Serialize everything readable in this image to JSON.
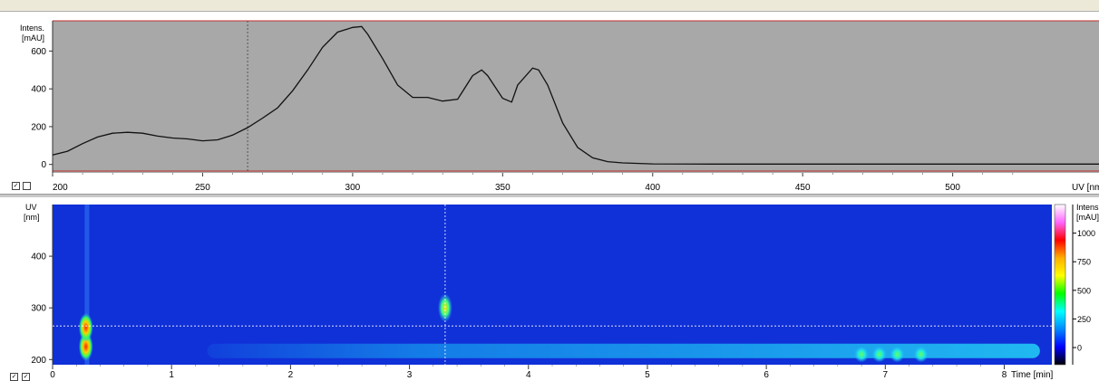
{
  "chart_data": [
    {
      "type": "line",
      "title": "",
      "ylabel": "Intens.",
      "yunit": "[mAU]",
      "xlabel": "UV [nm]",
      "xlim": [
        200,
        540
      ],
      "ylim": [
        -35,
        760
      ],
      "x_ticks": [
        "200",
        "250",
        "300",
        "350",
        "400",
        "450",
        "500"
      ],
      "y_ticks": [
        "0",
        "200",
        "400",
        "600"
      ],
      "cursor_x": 265,
      "background": "#a8a8a8",
      "line_color": "#111111",
      "baseline_color": "#c03030",
      "series": [
        {
          "x": [
            200,
            205,
            210,
            215,
            220,
            225,
            230,
            235,
            240,
            245,
            250,
            255,
            260,
            265,
            270,
            275,
            280,
            285,
            290,
            295,
            300,
            303,
            305,
            310,
            315,
            320,
            325,
            330,
            335,
            340,
            343,
            345,
            350,
            353,
            355,
            360,
            362,
            365,
            370,
            375,
            380,
            385,
            390,
            400,
            420,
            450,
            500,
            540
          ],
          "values": [
            50,
            70,
            110,
            145,
            165,
            170,
            165,
            150,
            140,
            135,
            125,
            130,
            155,
            195,
            245,
            300,
            390,
            500,
            620,
            700,
            725,
            730,
            690,
            560,
            420,
            355,
            355,
            335,
            345,
            470,
            500,
            470,
            350,
            330,
            420,
            510,
            500,
            420,
            220,
            90,
            35,
            15,
            8,
            3,
            2,
            2,
            2,
            2
          ]
        }
      ]
    },
    {
      "type": "heatmap",
      "title": "",
      "xlabel": "Time [min]",
      "ylabel": "UV",
      "yunit": "[nm]",
      "xlim": [
        0,
        8.4
      ],
      "ylim": [
        190,
        500
      ],
      "x_ticks": [
        "0",
        "1",
        "2",
        "3",
        "4",
        "5",
        "6",
        "7",
        "8"
      ],
      "y_ticks": [
        "200",
        "300",
        "400"
      ],
      "cursor_x": 3.3,
      "cursor_y": 265,
      "colorbar_label": "Intens.",
      "colorbar_unit": "[mAU]",
      "colorbar_ticks": [
        "1000",
        "750",
        "500",
        "250",
        "0"
      ],
      "colorbar_colors": [
        "#ffffff",
        "#ff66ff",
        "#ff0000",
        "#ffb000",
        "#ffff00",
        "#00ff00",
        "#00ffff",
        "#0088ff",
        "#0000ff",
        "#000000"
      ],
      "features": [
        {
          "kind": "band",
          "label": "baseline band",
          "x_start": 1.3,
          "x_end": 8.3,
          "y_center": 215,
          "intensity": 0.45
        },
        {
          "kind": "spot",
          "label": "solvent front",
          "x": 0.28,
          "y": 225,
          "intensity": 1.0
        },
        {
          "kind": "spot",
          "label": "solvent front upper",
          "x": 0.28,
          "y": 262,
          "intensity": 0.9
        },
        {
          "kind": "spot",
          "label": "peak 3.3 min",
          "x": 3.3,
          "y": 300,
          "intensity": 0.7
        },
        {
          "kind": "spot",
          "label": "late peak",
          "x": 6.8,
          "y": 210,
          "intensity": 0.6
        },
        {
          "kind": "spot",
          "label": "late peak",
          "x": 6.95,
          "y": 210,
          "intensity": 0.55
        },
        {
          "kind": "spot",
          "label": "late peak",
          "x": 7.1,
          "y": 210,
          "intensity": 0.55
        },
        {
          "kind": "spot",
          "label": "late peak",
          "x": 7.3,
          "y": 210,
          "intensity": 0.5
        }
      ]
    }
  ],
  "colors": {
    "heatmap_background": "#1030d8",
    "band_color": "#17a8f0",
    "cursor_color": "#ffffff"
  }
}
